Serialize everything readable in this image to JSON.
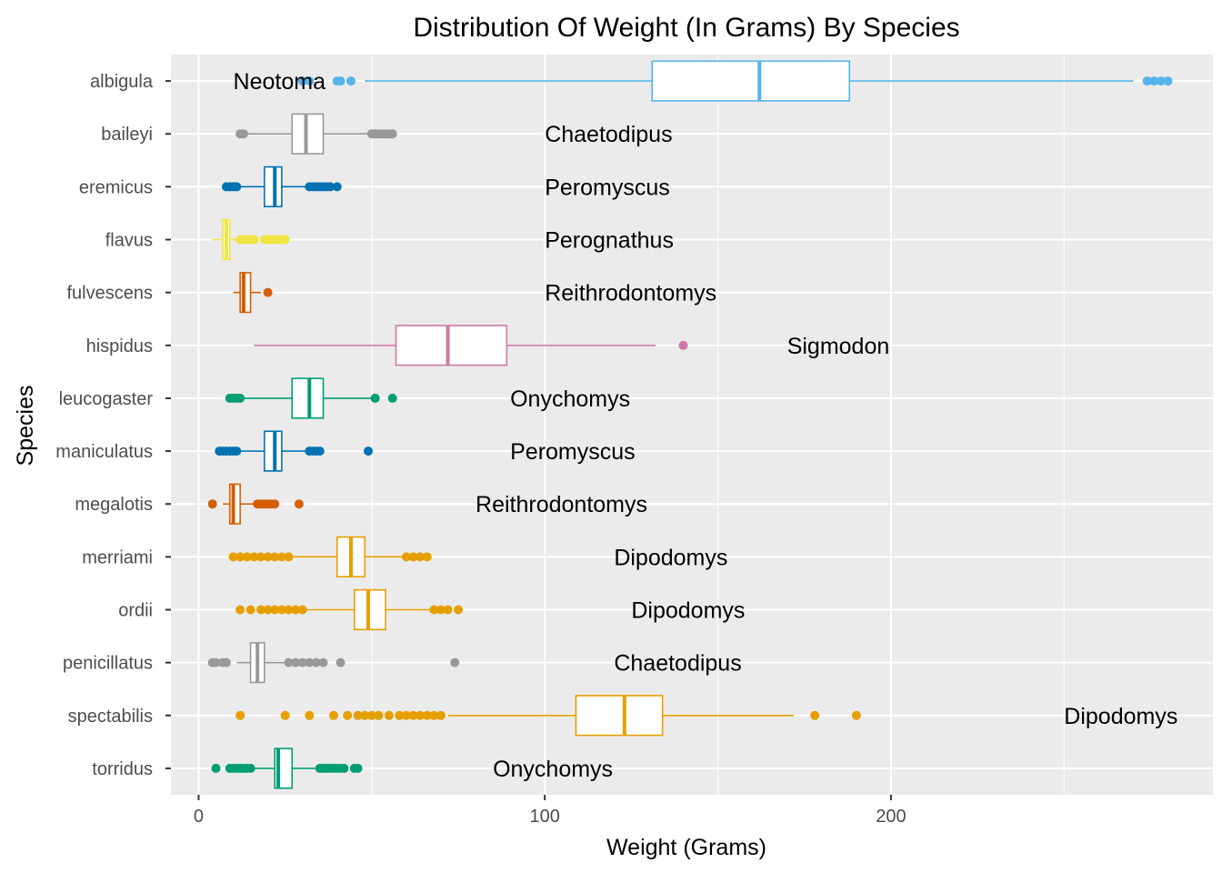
{
  "chart_data": {
    "type": "boxplot",
    "orientation": "horizontal",
    "title": "Distribution Of Weight (In Grams) By Species",
    "xlabel": "Weight (Grams)",
    "ylabel": "Species",
    "xlim": [
      -8,
      293
    ],
    "xticks": [
      0,
      100,
      200
    ],
    "xtick_labels": [
      "0",
      "100",
      "200"
    ],
    "grid": true,
    "legend": "none",
    "species": [
      {
        "species": "torridus",
        "genus": "Onychomys",
        "color": "#009E73",
        "label_x": 85,
        "min": 11,
        "q1": 22,
        "median": 23,
        "q3": 27,
        "max": 35,
        "outliers": [
          5,
          9,
          10,
          11,
          12,
          13,
          14,
          15,
          35,
          36,
          37,
          38,
          39,
          40,
          41,
          42,
          45,
          46
        ]
      },
      {
        "species": "spectabilis",
        "genus": "Dipodomys",
        "color": "#E69F00",
        "label_x": 250,
        "min": 72,
        "q1": 109,
        "median": 123,
        "q3": 134,
        "max": 172,
        "outliers": [
          12,
          25,
          32,
          39,
          43,
          46,
          48,
          50,
          52,
          55,
          58,
          60,
          62,
          64,
          66,
          68,
          70,
          178,
          190
        ]
      },
      {
        "species": "penicillatus",
        "genus": "Chaetodipus",
        "color": "#999999",
        "label_x": 120,
        "min": 11,
        "q1": 15,
        "median": 17,
        "q3": 19,
        "max": 26,
        "outliers": [
          4,
          5,
          7,
          8,
          26,
          28,
          30,
          32,
          34,
          36,
          41,
          74
        ]
      },
      {
        "species": "ordii",
        "genus": "Dipodomys",
        "color": "#E69F00",
        "label_x": 125,
        "min": 30,
        "q1": 45,
        "median": 49,
        "q3": 54,
        "max": 67,
        "outliers": [
          12,
          15,
          18,
          20,
          22,
          24,
          26,
          28,
          30,
          68,
          70,
          72,
          75
        ]
      },
      {
        "species": "merriami",
        "genus": "Dipodomys",
        "color": "#E69F00",
        "label_x": 120,
        "min": 27,
        "q1": 40,
        "median": 44,
        "q3": 48,
        "max": 60,
        "outliers": [
          10,
          12,
          14,
          16,
          18,
          20,
          22,
          24,
          26,
          60,
          62,
          64,
          66
        ]
      },
      {
        "species": "megalotis",
        "genus": "Reithrodontomys",
        "color": "#D55E00",
        "label_x": 80,
        "min": 7,
        "q1": 9,
        "median": 10,
        "q3": 12,
        "max": 16,
        "outliers": [
          4,
          17,
          18,
          19,
          20,
          21,
          22,
          29
        ]
      },
      {
        "species": "maniculatus",
        "genus": "Peromyscus",
        "color": "#0072B2",
        "label_x": 90,
        "min": 12,
        "q1": 19,
        "median": 22,
        "q3": 24,
        "max": 32,
        "outliers": [
          6,
          7,
          8,
          9,
          10,
          11,
          32,
          33,
          34,
          35,
          49
        ]
      },
      {
        "species": "leucogaster",
        "genus": "Onychomys",
        "color": "#009E73",
        "label_x": 90,
        "min": 12,
        "q1": 27,
        "median": 32,
        "q3": 36,
        "max": 50,
        "outliers": [
          9,
          10,
          11,
          12,
          51,
          56
        ]
      },
      {
        "species": "hispidus",
        "genus": "Sigmodon",
        "color": "#CC79A7",
        "label_x": 170,
        "min": 16,
        "q1": 57,
        "median": 72,
        "q3": 89,
        "max": 132,
        "outliers": [
          140
        ]
      },
      {
        "species": "fulvescens",
        "genus": "Reithrodontomys",
        "color": "#D55E00",
        "label_x": 100,
        "min": 10,
        "q1": 12,
        "median": 13,
        "q3": 15,
        "max": 18,
        "outliers": [
          20
        ]
      },
      {
        "species": "flavus",
        "genus": "Perognathus",
        "color": "#F0E442",
        "label_x": 100,
        "min": 4,
        "q1": 7,
        "median": 8,
        "q3": 9,
        "max": 12,
        "outliers": [
          12,
          13,
          14,
          15,
          16,
          19,
          20,
          21,
          22,
          23,
          24,
          25
        ]
      },
      {
        "species": "eremicus",
        "genus": "Peromyscus",
        "color": "#0072B2",
        "label_x": 100,
        "min": 11,
        "q1": 19,
        "median": 22,
        "q3": 24,
        "max": 32,
        "outliers": [
          8,
          9,
          10,
          11,
          32,
          33,
          34,
          35,
          36,
          37,
          38,
          40
        ]
      },
      {
        "species": "baileyi",
        "genus": "Chaetodipus",
        "color": "#999999",
        "label_x": 100,
        "min": 14,
        "q1": 27,
        "median": 31,
        "q3": 36,
        "max": 49,
        "outliers": [
          12,
          13,
          50,
          51,
          52,
          53,
          54,
          55,
          56
        ]
      },
      {
        "species": "albigula",
        "genus": "Neotoma",
        "color": "#56B4E9",
        "label_x": 10,
        "min": 48,
        "q1": 131,
        "median": 162,
        "q3": 188,
        "max": 270,
        "outliers": [
          30,
          32,
          40,
          41,
          44,
          274,
          276,
          278,
          280
        ]
      }
    ]
  }
}
